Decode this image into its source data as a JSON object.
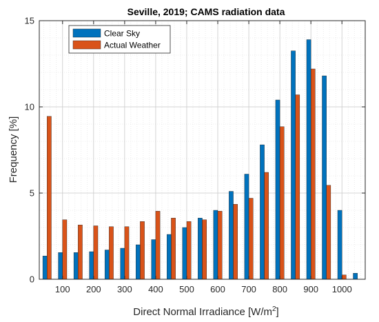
{
  "chart_data": {
    "type": "bar",
    "title": "Seville, 2019; CAMS radiation data",
    "xlabel": "Direct Normal Irradiance [W/m",
    "xlabel_sup": "2",
    "xlabel_suffix": "]",
    "ylabel": "Frequency [%]",
    "ylim": [
      0,
      15
    ],
    "xlim": [
      25,
      1075
    ],
    "grid": true,
    "legend_position": "top-left",
    "x_ticks": [
      100,
      200,
      300,
      400,
      500,
      600,
      700,
      800,
      900,
      1000
    ],
    "x_tick_labels": [
      "100",
      "200",
      "300",
      "400",
      "500",
      "600",
      "700",
      "800",
      "900",
      "1000"
    ],
    "y_ticks": [
      0,
      5,
      10,
      15
    ],
    "y_tick_labels": [
      "0",
      "5",
      "10",
      "15"
    ],
    "categories": [
      50,
      100,
      150,
      200,
      250,
      300,
      350,
      400,
      450,
      500,
      550,
      600,
      650,
      700,
      750,
      800,
      850,
      900,
      950,
      1000,
      1050
    ],
    "series": [
      {
        "name": "Clear Sky",
        "color": "#0072BD",
        "values": [
          1.35,
          1.55,
          1.55,
          1.6,
          1.7,
          1.8,
          2.0,
          2.3,
          2.6,
          3.0,
          3.55,
          4.0,
          5.1,
          6.1,
          7.8,
          10.4,
          13.25,
          13.9,
          11.8,
          4.0,
          0.35
        ]
      },
      {
        "name": "Actual Weather",
        "color": "#D95319",
        "values": [
          9.45,
          3.45,
          3.15,
          3.1,
          3.05,
          3.05,
          3.35,
          3.95,
          3.55,
          3.35,
          3.45,
          3.95,
          4.35,
          4.7,
          6.2,
          8.85,
          10.7,
          12.2,
          5.45,
          0.25,
          0.0
        ]
      }
    ]
  }
}
